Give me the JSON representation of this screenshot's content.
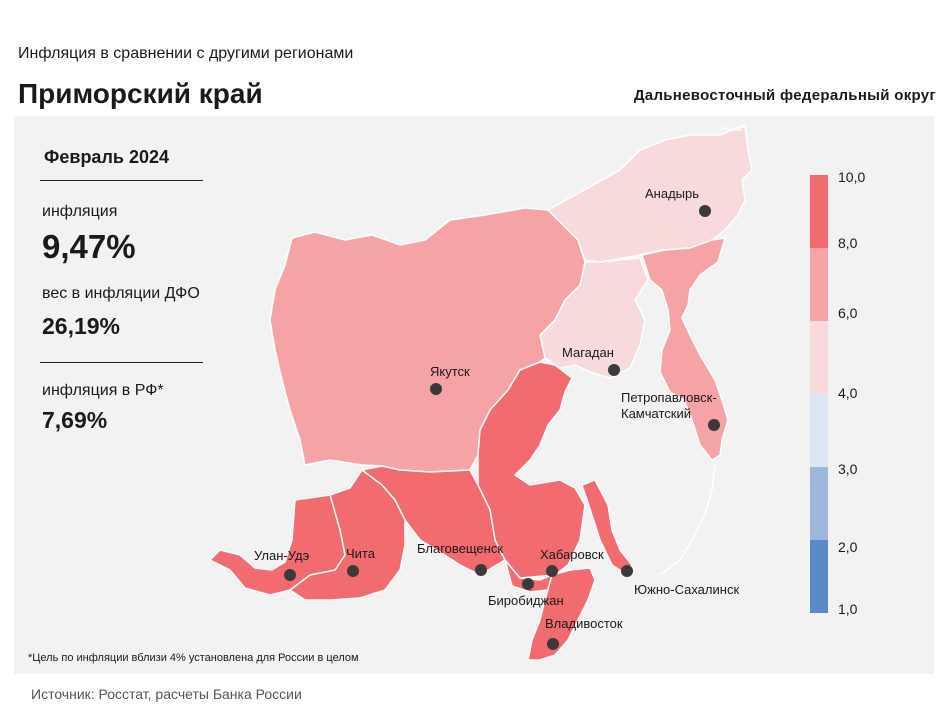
{
  "header": {
    "subtitle": "Инфляция  в сравнении  с другими  регионами",
    "title": "Приморский край",
    "district": "Дальневосточный федеральный округ"
  },
  "stats": {
    "period": "Февраль 2024",
    "inflation_label": "инфляция",
    "inflation_value": "9,47%",
    "weight_label": "вес в инфляции  ДФО",
    "weight_value": "26,19%",
    "rf_label": "инфляция  в РФ*",
    "rf_value": "7,69%"
  },
  "footnote": "*Цель по инфляции вблизи 4% установлена для России в целом",
  "source": "Источник: Росстат, расчеты  Банка  России",
  "legend": {
    "ticks": [
      "10,0",
      "8,0",
      "6,0",
      "4,0",
      "3,0",
      "2,0",
      "1,0"
    ],
    "colors": [
      "#f26b6e",
      "#f5a3a5",
      "#f8dadc",
      "#dce6f4",
      "#9bb7dc",
      "#5a8bc8"
    ]
  },
  "map": {
    "colors": {
      "high": "#f26b6e",
      "mid": "#f5a3a5",
      "low": "#f8dadc"
    },
    "cities": [
      {
        "name": "Анадырь",
        "category": "low"
      },
      {
        "name": "Магадан",
        "category": "low"
      },
      {
        "name": "Петропавловск-",
        "category": "mid"
      },
      {
        "name": "Камчатский",
        "category": "mid"
      },
      {
        "name": "Якутск",
        "category": "mid"
      },
      {
        "name": "Улан-Удэ",
        "category": "high"
      },
      {
        "name": "Чита",
        "category": "high"
      },
      {
        "name": "Благовещенск",
        "category": "high"
      },
      {
        "name": "Хабаровск",
        "category": "high"
      },
      {
        "name": "Биробиджан",
        "category": "high"
      },
      {
        "name": "Владивосток",
        "category": "high"
      },
      {
        "name": "Южно-Сахалинск",
        "category": "high"
      }
    ]
  }
}
